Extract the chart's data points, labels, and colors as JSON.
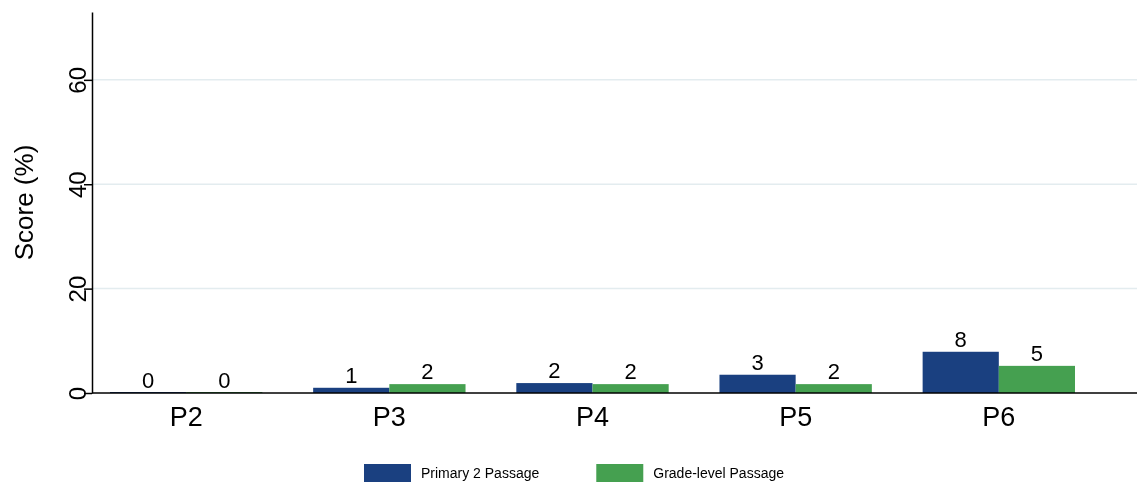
{
  "chart_data": {
    "type": "bar",
    "ylabel": "Score (%)",
    "categories": [
      "P2",
      "P3",
      "P4",
      "P5",
      "P6"
    ],
    "series": [
      {
        "name": "Primary 2 Passage",
        "color": "#1a4080",
        "values": [
          0,
          1.0,
          1.9,
          3.5,
          7.9
        ],
        "value_labels": [
          "0",
          "1",
          "2",
          "3",
          "8"
        ]
      },
      {
        "name": "Grade-level Passage",
        "color": "#45a050",
        "values": [
          0,
          1.7,
          1.7,
          1.7,
          5.2
        ],
        "value_labels": [
          "0",
          "2",
          "2",
          "2",
          "5"
        ]
      }
    ],
    "ylim": [
      0,
      73
    ],
    "yticks": [
      0,
      20,
      40,
      60
    ],
    "grid": "y",
    "legend": "bottom"
  }
}
